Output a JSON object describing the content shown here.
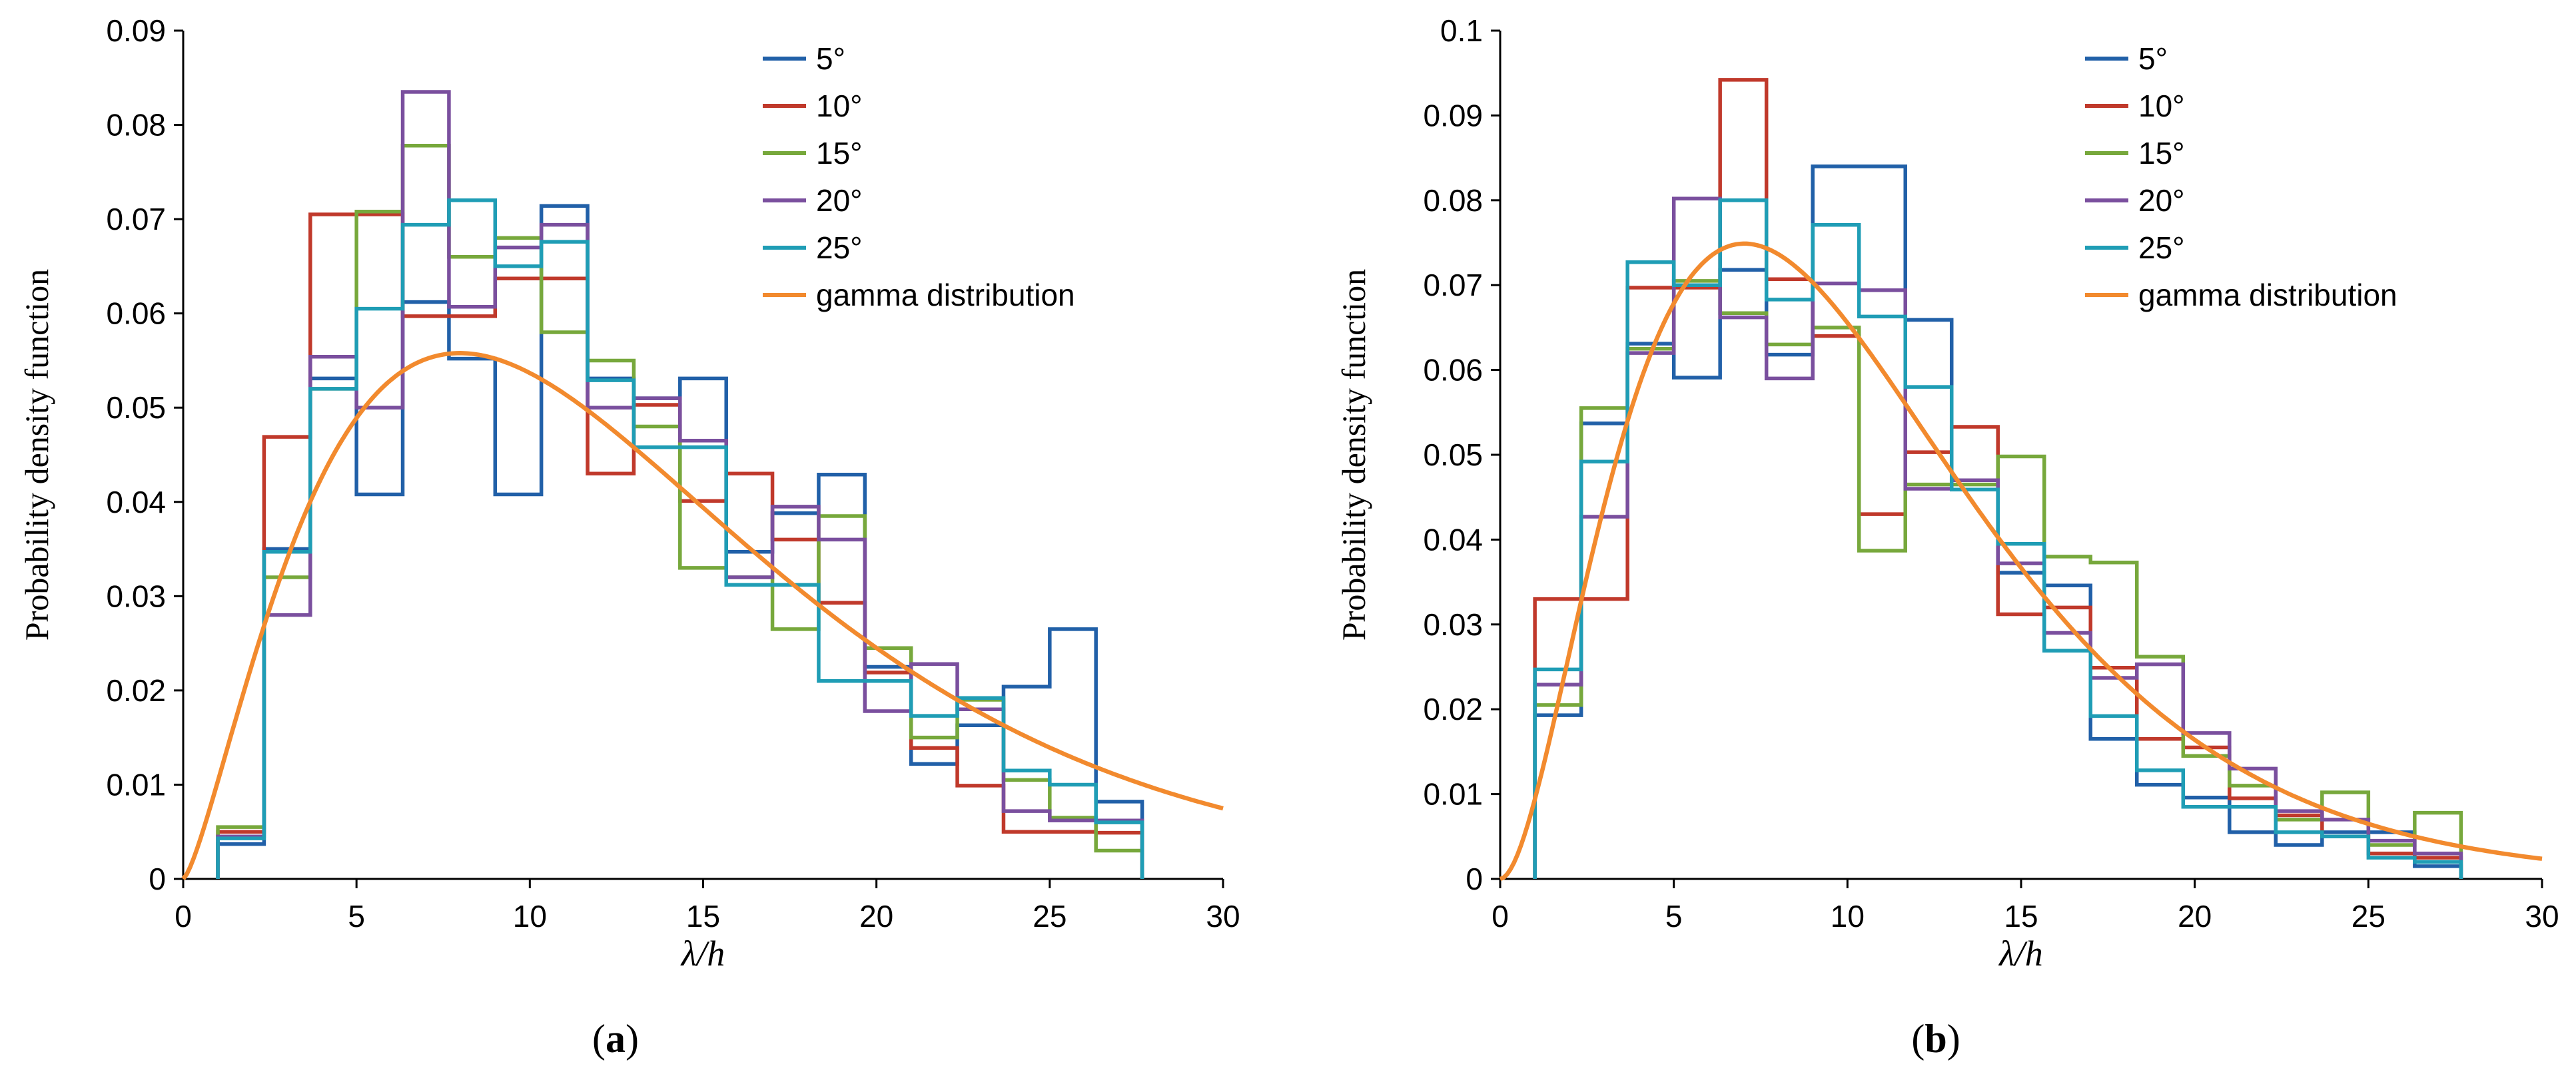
{
  "chart_data": [
    {
      "type": "histogram",
      "panel_label": "a",
      "xlabel": "λ/h",
      "ylabel": "Probability density function",
      "xlim": [
        0,
        30
      ],
      "ylim": [
        0,
        0.09
      ],
      "x_ticks": [
        "0",
        "5",
        "10",
        "15",
        "20",
        "25",
        "30"
      ],
      "y_ticks": [
        "0",
        "0.01",
        "0.02",
        "0.03",
        "0.04",
        "0.05",
        "0.06",
        "0.07",
        "0.08",
        "0.09"
      ],
      "bin_edges": [
        1.0,
        2.333,
        3.667,
        5.0,
        6.333,
        7.667,
        9.0,
        10.333,
        11.667,
        13.0,
        14.333,
        15.667,
        17.0,
        18.333,
        19.667,
        21.0,
        22.333,
        23.667,
        25.0,
        26.333,
        27.667
      ],
      "series": [
        {
          "name": "5°",
          "color": "#2160a8",
          "values": [
            0.0037,
            0.035,
            0.0531,
            0.0408,
            0.0612,
            0.0552,
            0.0408,
            0.0714,
            0.0531,
            0.051,
            0.0531,
            0.0347,
            0.0388,
            0.0429,
            0.0225,
            0.0122,
            0.0163,
            0.0204,
            0.0265,
            0.0082
          ]
        },
        {
          "name": "10°",
          "color": "#c0392b",
          "values": [
            0.005,
            0.0469,
            0.0705,
            0.0705,
            0.0597,
            0.0597,
            0.0637,
            0.0637,
            0.043,
            0.0503,
            0.0401,
            0.043,
            0.036,
            0.0293,
            0.0219,
            0.0139,
            0.0099,
            0.005,
            0.005,
            0.0049
          ]
        },
        {
          "name": "15°",
          "color": "#77a83c",
          "values": [
            0.0055,
            0.032,
            0.052,
            0.0708,
            0.0778,
            0.066,
            0.068,
            0.058,
            0.055,
            0.048,
            0.033,
            0.032,
            0.0265,
            0.0385,
            0.0245,
            0.015,
            0.019,
            0.0105,
            0.0065,
            0.003
          ]
        },
        {
          "name": "20°",
          "color": "#7a4f9e",
          "values": [
            0.0045,
            0.028,
            0.0554,
            0.05,
            0.0835,
            0.0607,
            0.067,
            0.0694,
            0.05,
            0.051,
            0.0465,
            0.032,
            0.0395,
            0.036,
            0.0178,
            0.0228,
            0.018,
            0.0072,
            0.0062,
            0.0062
          ]
        },
        {
          "name": "25°",
          "color": "#1f9db5",
          "values": [
            0.0043,
            0.0347,
            0.052,
            0.0605,
            0.0694,
            0.072,
            0.065,
            0.0676,
            0.0529,
            0.0458,
            0.0458,
            0.0312,
            0.0312,
            0.021,
            0.021,
            0.0173,
            0.0192,
            0.0115,
            0.01,
            0.006
          ]
        }
      ],
      "curve": {
        "name": "gamma distribution",
        "color": "#f28a2e",
        "shape": 2.4,
        "scale": 5.7
      }
    },
    {
      "type": "histogram",
      "panel_label": "b",
      "xlabel": "λ/h",
      "ylabel": "Probability density function",
      "xlim": [
        0,
        30
      ],
      "ylim": [
        0,
        0.1
      ],
      "x_ticks": [
        "0",
        "5",
        "10",
        "15",
        "20",
        "25",
        "30"
      ],
      "y_ticks": [
        "0",
        "0.01",
        "0.02",
        "0.03",
        "0.04",
        "0.05",
        "0.06",
        "0.07",
        "0.08",
        "0.09",
        "0.1"
      ],
      "bin_edges": [
        1.0,
        2.333,
        3.667,
        5.0,
        6.333,
        7.667,
        9.0,
        10.333,
        11.667,
        13.0,
        14.333,
        15.667,
        17.0,
        18.333,
        19.667,
        21.0,
        22.333,
        23.667,
        25.0,
        26.333,
        27.667
      ],
      "series": [
        {
          "name": "5°",
          "color": "#2160a8",
          "values": [
            0.0193,
            0.0537,
            0.0631,
            0.0591,
            0.0718,
            0.0618,
            0.084,
            0.084,
            0.0659,
            0.047,
            0.0361,
            0.0346,
            0.0165,
            0.0111,
            0.0096,
            0.0055,
            0.004,
            0.0055,
            0.0055,
            0.0015
          ]
        },
        {
          "name": "10°",
          "color": "#c0392b",
          "values": [
            0.033,
            0.033,
            0.0697,
            0.0697,
            0.0942,
            0.0707,
            0.064,
            0.043,
            0.0503,
            0.0533,
            0.0312,
            0.032,
            0.0249,
            0.0165,
            0.0155,
            0.0095,
            0.0075,
            0.005,
            0.003,
            0.0025
          ]
        },
        {
          "name": "15°",
          "color": "#77a83c",
          "values": [
            0.0205,
            0.0555,
            0.0625,
            0.0705,
            0.0667,
            0.063,
            0.065,
            0.0387,
            0.0465,
            0.0465,
            0.0498,
            0.038,
            0.0373,
            0.0262,
            0.0145,
            0.011,
            0.007,
            0.0102,
            0.004,
            0.0078
          ]
        },
        {
          "name": "20°",
          "color": "#7a4f9e",
          "values": [
            0.0229,
            0.0427,
            0.062,
            0.0802,
            0.0662,
            0.059,
            0.0702,
            0.0694,
            0.046,
            0.047,
            0.0372,
            0.029,
            0.0237,
            0.0253,
            0.0172,
            0.013,
            0.008,
            0.007,
            0.0045,
            0.003
          ]
        },
        {
          "name": "25°",
          "color": "#1f9db5",
          "values": [
            0.0247,
            0.0492,
            0.0727,
            0.07,
            0.08,
            0.0683,
            0.0771,
            0.0663,
            0.058,
            0.0459,
            0.0395,
            0.0269,
            0.0192,
            0.0128,
            0.0085,
            0.0085,
            0.0055,
            0.005,
            0.0025,
            0.002
          ]
        }
      ],
      "curve": {
        "name": "gamma distribution",
        "color": "#f28a2e",
        "shape": 2.9,
        "scale": 3.7
      }
    }
  ]
}
